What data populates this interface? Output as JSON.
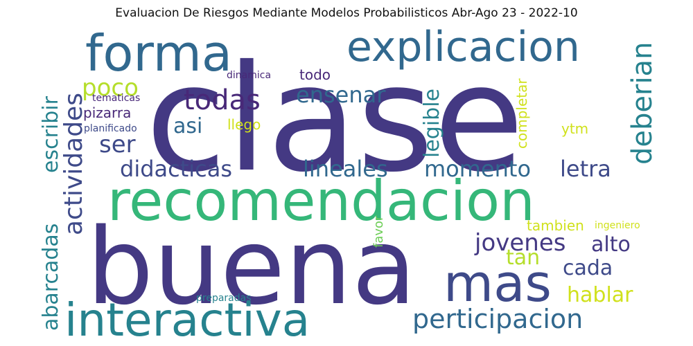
{
  "title": "Evaluacion De Riesgos Mediante Modelos Probabilisticos Abr-Ago 23 - 2022-10",
  "palette": {
    "indigo": "#443983",
    "slate": "#3e4a89",
    "blue": "#31688e",
    "teal": "#26828e",
    "green": "#35b779",
    "lime": "#b5de2b",
    "yellow": "#d0e11c",
    "purple": "#482878",
    "light_green": "#6ece58"
  },
  "words": [
    {
      "text": "clase",
      "color": "indigo"
    },
    {
      "text": "buena",
      "color": "indigo"
    },
    {
      "text": "recomendacion",
      "color": "green"
    },
    {
      "text": "forma",
      "color": "blue"
    },
    {
      "text": "explicacion",
      "color": "blue"
    },
    {
      "text": "interactiva",
      "color": "teal"
    },
    {
      "text": "mas",
      "color": "slate"
    },
    {
      "text": "perticipacion",
      "color": "blue"
    },
    {
      "text": "deberian",
      "color": "teal"
    },
    {
      "text": "actividades",
      "color": "slate"
    },
    {
      "text": "escribir",
      "color": "teal"
    },
    {
      "text": "abarcadas",
      "color": "teal"
    },
    {
      "text": "didacticas",
      "color": "slate"
    },
    {
      "text": "lineales",
      "color": "blue"
    },
    {
      "text": "momento",
      "color": "blue"
    },
    {
      "text": "letra",
      "color": "slate"
    },
    {
      "text": "todas",
      "color": "purple"
    },
    {
      "text": "ensenar",
      "color": "blue"
    },
    {
      "text": "legible",
      "color": "teal"
    },
    {
      "text": "jovenes",
      "color": "indigo"
    },
    {
      "text": "alto",
      "color": "indigo"
    },
    {
      "text": "cada",
      "color": "slate"
    },
    {
      "text": "hablar",
      "color": "yellow"
    },
    {
      "text": "tan",
      "color": "lime"
    },
    {
      "text": "poco",
      "color": "lime"
    },
    {
      "text": "ser",
      "color": "slate"
    },
    {
      "text": "asi",
      "color": "blue"
    },
    {
      "text": "pizarra",
      "color": "purple"
    },
    {
      "text": "llego",
      "color": "yellow"
    },
    {
      "text": "todo",
      "color": "purple"
    },
    {
      "text": "completar",
      "color": "yellow"
    },
    {
      "text": "ytm",
      "color": "yellow"
    },
    {
      "text": "favor",
      "color": "light_green"
    },
    {
      "text": "tambien",
      "color": "yellow"
    },
    {
      "text": "ingeniero",
      "color": "yellow"
    },
    {
      "text": "dinamica",
      "color": "purple"
    },
    {
      "text": "tematicas",
      "color": "purple"
    },
    {
      "text": "planificado",
      "color": "slate"
    },
    {
      "text": "preparadas",
      "color": "teal"
    }
  ]
}
